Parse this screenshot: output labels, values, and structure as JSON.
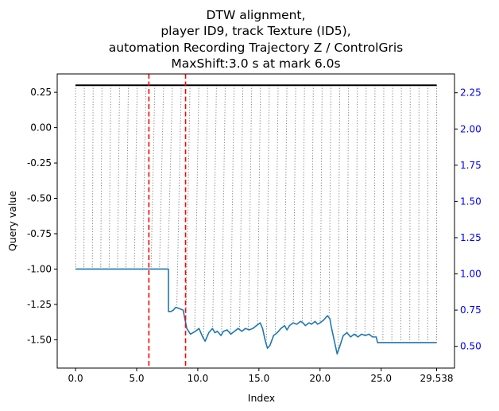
{
  "chart_data": {
    "type": "line",
    "title_lines": [
      "DTW alignment,",
      "player ID9, track Texture (ID5),",
      "automation Recording Trajectory Z / ControlGris",
      "MaxShift:3.0 s at mark 6.0s"
    ],
    "xlabel": "Index",
    "ylabel": "Query value",
    "xlim": [
      -1.5,
      31.0
    ],
    "ylim": [
      -1.7,
      0.38
    ],
    "y2lim": [
      0.35,
      2.38
    ],
    "x_ticks": [
      "0.0",
      "5.0",
      "10.0",
      "15.0",
      "20.0",
      "25.0",
      "29.538"
    ],
    "x_tick_values": [
      0,
      5,
      10,
      15,
      20,
      25,
      29.538
    ],
    "y_ticks": [
      "0.25",
      "0.00",
      "-0.25",
      "-0.50",
      "-0.75",
      "-1.00",
      "-1.25",
      "-1.50"
    ],
    "y_tick_values": [
      0.25,
      0.0,
      -0.25,
      -0.5,
      -0.75,
      -1.0,
      -1.25,
      -1.5
    ],
    "y2_ticks": [
      "2.25",
      "2.00",
      "1.75",
      "1.50",
      "1.25",
      "1.00",
      "0.75",
      "0.50"
    ],
    "y2_tick_values": [
      2.25,
      2.0,
      1.75,
      1.5,
      1.25,
      1.0,
      0.75,
      0.5
    ],
    "series": [
      {
        "color": "#1f77b4",
        "points": [
          [
            0.0,
            -1.0
          ],
          [
            7.6,
            -1.0
          ],
          [
            7.6,
            -1.3
          ],
          [
            7.8,
            -1.3
          ],
          [
            8.0,
            -1.29
          ],
          [
            8.2,
            -1.27
          ],
          [
            8.5,
            -1.28
          ],
          [
            8.8,
            -1.29
          ],
          [
            9.1,
            -1.42
          ],
          [
            9.4,
            -1.46
          ],
          [
            9.8,
            -1.44
          ],
          [
            10.1,
            -1.42
          ],
          [
            10.4,
            -1.48
          ],
          [
            10.6,
            -1.51
          ],
          [
            10.9,
            -1.45
          ],
          [
            11.2,
            -1.42
          ],
          [
            11.4,
            -1.45
          ],
          [
            11.6,
            -1.44
          ],
          [
            11.9,
            -1.47
          ],
          [
            12.1,
            -1.44
          ],
          [
            12.4,
            -1.43
          ],
          [
            12.7,
            -1.46
          ],
          [
            13.0,
            -1.44
          ],
          [
            13.3,
            -1.42
          ],
          [
            13.6,
            -1.44
          ],
          [
            13.9,
            -1.42
          ],
          [
            14.2,
            -1.43
          ],
          [
            14.5,
            -1.42
          ],
          [
            14.8,
            -1.4
          ],
          [
            15.1,
            -1.38
          ],
          [
            15.3,
            -1.42
          ],
          [
            15.5,
            -1.5
          ],
          [
            15.7,
            -1.56
          ],
          [
            15.9,
            -1.54
          ],
          [
            16.2,
            -1.47
          ],
          [
            16.5,
            -1.45
          ],
          [
            16.8,
            -1.42
          ],
          [
            17.1,
            -1.4
          ],
          [
            17.3,
            -1.43
          ],
          [
            17.5,
            -1.4
          ],
          [
            17.8,
            -1.38
          ],
          [
            18.1,
            -1.39
          ],
          [
            18.4,
            -1.37
          ],
          [
            18.6,
            -1.38
          ],
          [
            18.8,
            -1.4
          ],
          [
            19.1,
            -1.38
          ],
          [
            19.3,
            -1.39
          ],
          [
            19.6,
            -1.37
          ],
          [
            19.8,
            -1.39
          ],
          [
            20.0,
            -1.38
          ],
          [
            20.3,
            -1.36
          ],
          [
            20.6,
            -1.33
          ],
          [
            20.8,
            -1.35
          ],
          [
            20.9,
            -1.4
          ],
          [
            21.1,
            -1.48
          ],
          [
            21.3,
            -1.56
          ],
          [
            21.4,
            -1.6
          ],
          [
            21.6,
            -1.55
          ],
          [
            21.9,
            -1.47
          ],
          [
            22.2,
            -1.45
          ],
          [
            22.5,
            -1.48
          ],
          [
            22.8,
            -1.46
          ],
          [
            23.1,
            -1.48
          ],
          [
            23.4,
            -1.46
          ],
          [
            23.7,
            -1.47
          ],
          [
            24.0,
            -1.46
          ],
          [
            24.3,
            -1.48
          ],
          [
            24.6,
            -1.48
          ],
          [
            24.7,
            -1.52
          ],
          [
            29.538,
            -1.52
          ]
        ]
      },
      {
        "color": "#000000",
        "points": [
          [
            0.0,
            0.3
          ],
          [
            29.538,
            0.3
          ]
        ]
      }
    ],
    "vertical_markers": [
      {
        "x": 6.0,
        "color": "#ff0000",
        "style": "dashed"
      },
      {
        "x": 9.0,
        "color": "#ff0000",
        "style": "dashed"
      }
    ],
    "alignment_lines": {
      "color": "#808080",
      "style": "dotted",
      "count": 42
    },
    "grid": false,
    "colors": {
      "query_line": "#1f77b4",
      "reference_line": "#000000",
      "markers": "#ff0000",
      "right_axis": "#0000ff",
      "alignment": "#808080"
    }
  }
}
